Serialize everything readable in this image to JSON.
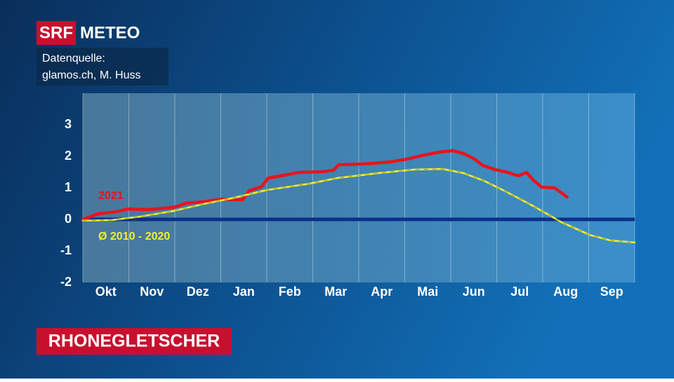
{
  "header": {
    "logo": "SRF",
    "brand": "METEO",
    "source_label": "Datenquelle:",
    "source": "glamos.ch, M. Huss"
  },
  "chart_data": {
    "type": "line",
    "title": "RHONEGLETSCHER",
    "xlim": [
      0,
      12
    ],
    "xticks": [
      {
        "value": 0.5,
        "label": "Okt"
      },
      {
        "value": 1.5,
        "label": "Nov"
      },
      {
        "value": 2.5,
        "label": "Dez"
      },
      {
        "value": 3.5,
        "label": "Jan"
      },
      {
        "value": 4.5,
        "label": "Feb"
      },
      {
        "value": 5.5,
        "label": "Mar"
      },
      {
        "value": 6.5,
        "label": "Apr"
      },
      {
        "value": 7.5,
        "label": "Mai"
      },
      {
        "value": 8.5,
        "label": "Jun"
      },
      {
        "value": 9.5,
        "label": "Jul"
      },
      {
        "value": 10.5,
        "label": "Aug"
      },
      {
        "value": 11.5,
        "label": "Sep"
      }
    ],
    "ylim": [
      -2,
      4
    ],
    "yticks": [
      3,
      2,
      1,
      0,
      -1,
      -2
    ],
    "zero_line": true,
    "series": [
      {
        "name": "2021",
        "color": "#e8141e",
        "line_style": "solid",
        "x": [
          0,
          0.34,
          0.72,
          0.98,
          1.4,
          1.98,
          2.24,
          2.63,
          2.99,
          3.47,
          3.62,
          3.89,
          4.03,
          4.38,
          4.69,
          5.22,
          5.45,
          5.56,
          6.14,
          6.67,
          7.05,
          7.36,
          7.74,
          8.05,
          8.27,
          8.5,
          8.7,
          8.96,
          9.19,
          9.47,
          9.65,
          9.8,
          9.98,
          10.26,
          10.53
        ],
        "values": [
          0,
          0.18,
          0.24,
          0.33,
          0.31,
          0.38,
          0.51,
          0.56,
          0.64,
          0.62,
          0.91,
          1.04,
          1.31,
          1.4,
          1.49,
          1.51,
          1.56,
          1.73,
          1.76,
          1.82,
          1.91,
          2.02,
          2.13,
          2.18,
          2.09,
          1.93,
          1.71,
          1.58,
          1.51,
          1.38,
          1.49,
          1.24,
          1.02,
          1.0,
          0.71
        ]
      },
      {
        "name": "Ø 2010 - 2020",
        "color": "#f2f22a",
        "line_style": "dashed",
        "x": [
          0,
          0.64,
          1.25,
          1.98,
          2.63,
          3.24,
          4.0,
          4.92,
          5.53,
          6.44,
          7.21,
          7.82,
          8.27,
          8.73,
          9.19,
          9.8,
          10.41,
          11.02,
          11.48,
          12
        ],
        "values": [
          -0.04,
          -0.02,
          0.09,
          0.27,
          0.49,
          0.67,
          0.93,
          1.13,
          1.31,
          1.47,
          1.58,
          1.6,
          1.47,
          1.22,
          0.89,
          0.42,
          -0.09,
          -0.49,
          -0.67,
          -0.73
        ]
      }
    ]
  }
}
